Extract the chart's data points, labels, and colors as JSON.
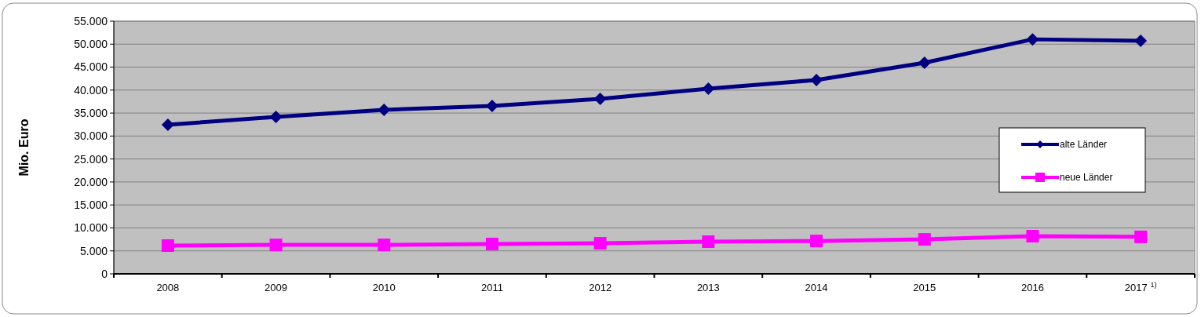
{
  "chart_data": {
    "type": "line",
    "ylabel": "Mio. Euro",
    "categories": [
      "2008",
      "2009",
      "2010",
      "2011",
      "2012",
      "2013",
      "2014",
      "2015",
      "2016",
      "2017 $^{1)}$"
    ],
    "series": [
      {
        "name": "alte Länder",
        "color": "#000080",
        "marker": "diamond",
        "values": [
          32450,
          34150,
          35700,
          36550,
          38100,
          40300,
          42200,
          45950,
          51050,
          50750
        ]
      },
      {
        "name": "neue Länder",
        "color": "#ff00ff",
        "marker": "square",
        "values": [
          6150,
          6300,
          6300,
          6500,
          6650,
          7000,
          7150,
          7500,
          8200,
          8050
        ]
      }
    ],
    "ylim": [
      0,
      55000
    ],
    "yticks": [
      {
        "value": 0,
        "label": "0"
      },
      {
        "value": 5000,
        "label": "5.000"
      },
      {
        "value": 10000,
        "label": "10.000"
      },
      {
        "value": 15000,
        "label": "15.000"
      },
      {
        "value": 20000,
        "label": "20.000"
      },
      {
        "value": 25000,
        "label": "25.000"
      },
      {
        "value": 30000,
        "label": "30.000"
      },
      {
        "value": 35000,
        "label": "35.000"
      },
      {
        "value": 40000,
        "label": "40.000"
      },
      {
        "value": 45000,
        "label": "45.000"
      },
      {
        "value": 50000,
        "label": "50.000"
      },
      {
        "value": 55000,
        "label": "55.000"
      }
    ],
    "grid": "y",
    "legend": "right"
  }
}
